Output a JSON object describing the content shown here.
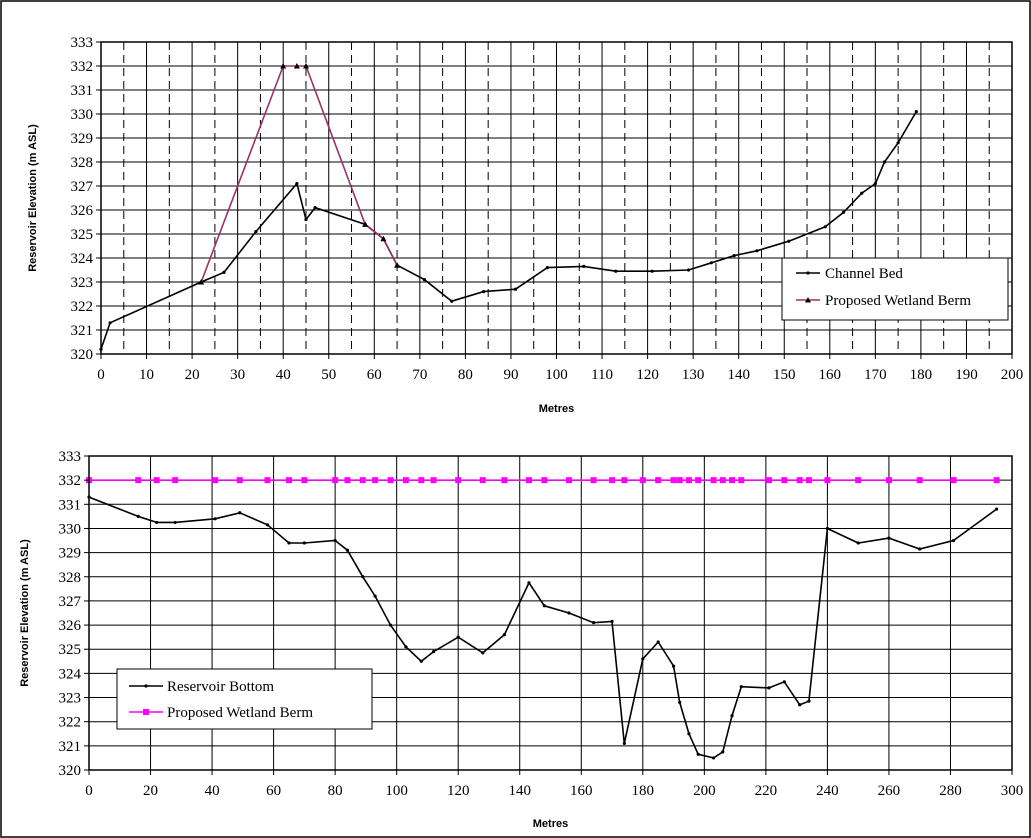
{
  "chart_data": [
    {
      "type": "line",
      "xlabel": "Metres",
      "ylabel": "Reservoir Elevation (m ASL)",
      "xlim": [
        0,
        200
      ],
      "ylim": [
        320,
        333
      ],
      "x_ticks": [
        "0",
        "10",
        "20",
        "30",
        "40",
        "50",
        "60",
        "70",
        "80",
        "90",
        "100",
        "110",
        "120",
        "130",
        "140",
        "150",
        "160",
        "170",
        "180",
        "190",
        "200"
      ],
      "y_ticks": [
        "320",
        "321",
        "322",
        "323",
        "324",
        "325",
        "326",
        "327",
        "328",
        "329",
        "330",
        "331",
        "332",
        "333"
      ],
      "grid": "major solid, minor vertical dashed",
      "legend_position": "right",
      "series": [
        {
          "name": "Channel Bed",
          "color": "#000000",
          "marker": "dot",
          "points": [
            [
              0,
              320.2
            ],
            [
              2,
              321.3
            ],
            [
              22,
              323.0
            ],
            [
              27,
              323.4
            ],
            [
              34,
              325.1
            ],
            [
              43,
              327.1
            ],
            [
              45,
              325.6
            ],
            [
              47,
              326.1
            ],
            [
              58,
              325.4
            ],
            [
              62,
              324.8
            ],
            [
              65,
              323.7
            ],
            [
              71,
              323.1
            ],
            [
              77,
              322.2
            ],
            [
              84,
              322.6
            ],
            [
              91,
              322.7
            ],
            [
              98,
              323.6
            ],
            [
              106,
              323.65
            ],
            [
              113,
              323.45
            ],
            [
              121,
              323.45
            ],
            [
              129,
              323.5
            ],
            [
              134,
              323.8
            ],
            [
              139,
              324.1
            ],
            [
              144,
              324.3
            ],
            [
              151,
              324.7
            ],
            [
              159,
              325.3
            ],
            [
              163,
              325.9
            ],
            [
              167,
              326.7
            ],
            [
              170,
              327.1
            ],
            [
              172,
              328.0
            ],
            [
              175,
              328.8
            ],
            [
              179,
              330.1
            ]
          ]
        },
        {
          "name": "Proposed Wetland Berm",
          "color": "#993366",
          "marker": "triangle",
          "points": [
            [
              22,
              323.0
            ],
            [
              40,
              332.0
            ],
            [
              43,
              332.0
            ],
            [
              45,
              332.0
            ],
            [
              58,
              325.4
            ],
            [
              62,
              324.8
            ],
            [
              65,
              323.7
            ]
          ]
        }
      ]
    },
    {
      "type": "line",
      "xlabel": "Metres",
      "ylabel": "Reservoir Elevation (m ASL)",
      "xlim": [
        0,
        300
      ],
      "ylim": [
        320,
        333
      ],
      "x_ticks": [
        "0",
        "20",
        "40",
        "60",
        "80",
        "100",
        "120",
        "140",
        "160",
        "180",
        "200",
        "220",
        "240",
        "260",
        "280",
        "300"
      ],
      "y_ticks": [
        "320",
        "321",
        "322",
        "323",
        "324",
        "325",
        "326",
        "327",
        "328",
        "329",
        "330",
        "331",
        "332",
        "333"
      ],
      "grid": "major solid",
      "legend_position": "bottom-left",
      "series": [
        {
          "name": "Reservoir Bottom",
          "color": "#000000",
          "marker": "dot",
          "points": [
            [
              0,
              331.3
            ],
            [
              16,
              330.5
            ],
            [
              22,
              330.25
            ],
            [
              28,
              330.25
            ],
            [
              41,
              330.4
            ],
            [
              49,
              330.65
            ],
            [
              58,
              330.15
            ],
            [
              65,
              329.4
            ],
            [
              70,
              329.4
            ],
            [
              80,
              329.5
            ],
            [
              84,
              329.1
            ],
            [
              89,
              328.0
            ],
            [
              93,
              327.2
            ],
            [
              98,
              326.0
            ],
            [
              103,
              325.1
            ],
            [
              108,
              324.5
            ],
            [
              112,
              324.9
            ],
            [
              120,
              325.5
            ],
            [
              128,
              324.85
            ],
            [
              135,
              325.6
            ],
            [
              143,
              327.75
            ],
            [
              148,
              326.8
            ],
            [
              156,
              326.5
            ],
            [
              164,
              326.1
            ],
            [
              170,
              326.15
            ],
            [
              174,
              321.1
            ],
            [
              180,
              324.6
            ],
            [
              185,
              325.3
            ],
            [
              190,
              324.3
            ],
            [
              192,
              322.8
            ],
            [
              195,
              321.5
            ],
            [
              198,
              320.65
            ],
            [
              203,
              320.5
            ],
            [
              206,
              320.75
            ],
            [
              209,
              322.25
            ],
            [
              212,
              323.45
            ],
            [
              221,
              323.4
            ],
            [
              226,
              323.65
            ],
            [
              231,
              322.7
            ],
            [
              234,
              322.85
            ],
            [
              240,
              330.0
            ],
            [
              250,
              329.4
            ],
            [
              260,
              329.6
            ],
            [
              270,
              329.15
            ],
            [
              281,
              329.5
            ],
            [
              295,
              330.8
            ]
          ]
        },
        {
          "name": "Proposed Wetland Berm",
          "color": "#ff00ff",
          "marker": "square",
          "points": [
            [
              0,
              332
            ],
            [
              16,
              332
            ],
            [
              22,
              332
            ],
            [
              28,
              332
            ],
            [
              41,
              332
            ],
            [
              49,
              332
            ],
            [
              58,
              332
            ],
            [
              65,
              332
            ],
            [
              70,
              332
            ],
            [
              80,
              332
            ],
            [
              84,
              332
            ],
            [
              89,
              332
            ],
            [
              93,
              332
            ],
            [
              98,
              332
            ],
            [
              103,
              332
            ],
            [
              108,
              332
            ],
            [
              112,
              332
            ],
            [
              120,
              332
            ],
            [
              128,
              332
            ],
            [
              135,
              332
            ],
            [
              143,
              332
            ],
            [
              148,
              332
            ],
            [
              156,
              332
            ],
            [
              164,
              332
            ],
            [
              170,
              332
            ],
            [
              174,
              332
            ],
            [
              180,
              332
            ],
            [
              185,
              332
            ],
            [
              190,
              332
            ],
            [
              192,
              332
            ],
            [
              195,
              332
            ],
            [
              198,
              332
            ],
            [
              203,
              332
            ],
            [
              206,
              332
            ],
            [
              209,
              332
            ],
            [
              212,
              332
            ],
            [
              221,
              332
            ],
            [
              226,
              332
            ],
            [
              231,
              332
            ],
            [
              234,
              332
            ],
            [
              240,
              332
            ],
            [
              250,
              332
            ],
            [
              260,
              332
            ],
            [
              270,
              332
            ],
            [
              281,
              332
            ],
            [
              295,
              332
            ]
          ]
        }
      ]
    }
  ]
}
